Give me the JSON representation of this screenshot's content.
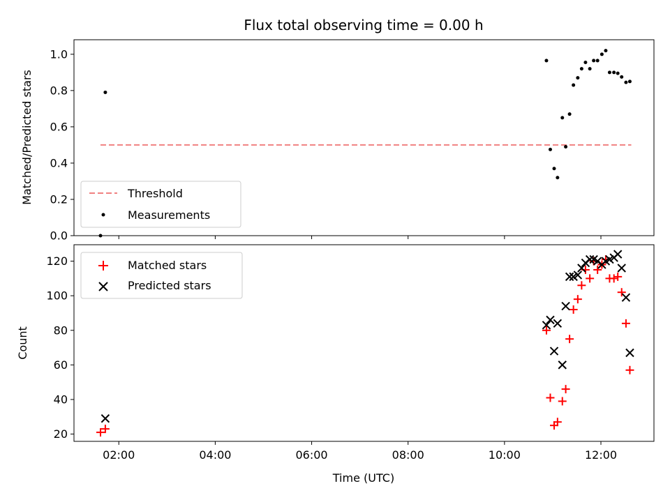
{
  "chart_data": {
    "title": "Flux total observing time = 0.00 h",
    "xlabel": "Time (UTC)",
    "x_ticks": [
      "02:00",
      "04:00",
      "06:00",
      "08:00",
      "10:00",
      "12:00"
    ],
    "xlim_hours": [
      1.07,
      13.1
    ],
    "panels": [
      {
        "type": "scatter",
        "ylabel": "Matched/Predicted stars",
        "ylim": [
          0,
          1.08
        ],
        "y_ticks": [
          "0.0",
          "0.2",
          "0.4",
          "0.6",
          "0.8",
          "1.0"
        ],
        "legend_position": "lower-left",
        "threshold": {
          "name": "Threshold",
          "value": 0.5,
          "x_start": 1.62,
          "x_end": 12.63,
          "color": "#f08080"
        },
        "series": [
          {
            "name": "Measurements",
            "color": "#000000",
            "x": [
              1.62,
              1.72,
              10.87,
              10.95,
              11.03,
              11.1,
              11.2,
              11.27,
              11.35,
              11.43,
              11.52,
              11.6,
              11.68,
              11.77,
              11.85,
              11.93,
              12.02,
              12.1,
              12.18,
              12.27,
              12.35,
              12.43,
              12.52,
              12.6
            ],
            "y": [
              0.0,
              0.79,
              0.965,
              0.475,
              0.37,
              0.32,
              0.65,
              0.49,
              0.67,
              0.83,
              0.87,
              0.92,
              0.955,
              0.92,
              0.965,
              0.965,
              1.0,
              1.02,
              0.9,
              0.9,
              0.895,
              0.875,
              0.845,
              0.85
            ]
          }
        ]
      },
      {
        "type": "scatter",
        "ylabel": "Count",
        "ylim": [
          15.8,
          129.5
        ],
        "y_ticks": [
          "20",
          "40",
          "60",
          "80",
          "100",
          "120"
        ],
        "legend_position": "upper-left",
        "series": [
          {
            "name": "Matched stars",
            "marker": "plus",
            "color": "#ff0000",
            "x": [
              1.62,
              1.72,
              10.87,
              10.95,
              11.03,
              11.1,
              11.2,
              11.27,
              11.35,
              11.43,
              11.52,
              11.6,
              11.68,
              11.77,
              11.85,
              11.93,
              12.02,
              12.1,
              12.18,
              12.27,
              12.35,
              12.43,
              12.52,
              12.6
            ],
            "y": [
              21,
              23,
              80,
              41,
              25,
              27,
              39,
              46,
              75,
              92,
              98,
              106,
              115,
              110,
              120,
              115,
              118,
              121,
              110,
              110,
              111,
              102,
              84,
              57
            ]
          },
          {
            "name": "Predicted stars",
            "marker": "x",
            "color": "#000000",
            "x": [
              1.72,
              10.87,
              10.95,
              11.03,
              11.1,
              11.2,
              11.27,
              11.35,
              11.43,
              11.52,
              11.6,
              11.68,
              11.77,
              11.85,
              11.93,
              12.02,
              12.1,
              12.18,
              12.27,
              12.35,
              12.43,
              12.52,
              12.6
            ],
            "y": [
              29,
              83,
              86,
              68,
              84,
              60,
              94,
              111,
              111,
              112,
              116,
              119,
              121,
              121,
              120,
              118,
              120,
              121,
              122,
              124,
              116,
              99,
              67
            ]
          }
        ]
      }
    ]
  }
}
